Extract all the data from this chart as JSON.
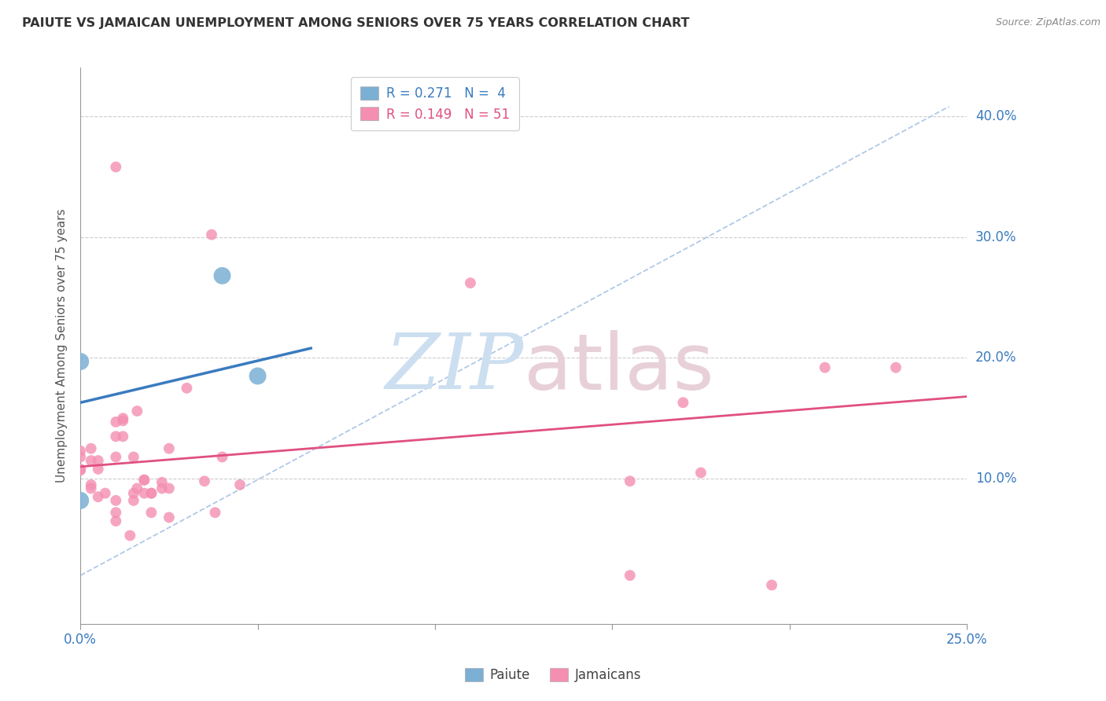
{
  "title": "PAIUTE VS JAMAICAN UNEMPLOYMENT AMONG SENIORS OVER 75 YEARS CORRELATION CHART",
  "source": "Source: ZipAtlas.com",
  "ylabel": "Unemployment Among Seniors over 75 years",
  "xlim": [
    0.0,
    0.25
  ],
  "ylim": [
    -0.02,
    0.44
  ],
  "background_color": "#ffffff",
  "paiute_color": "#7bafd4",
  "jamaican_color": "#f48fb1",
  "paiute_line_color": "#3a7bbf",
  "jamaican_line_color": "#e05080",
  "dashed_line_color": "#b0c8e8",
  "paiute_points": [
    [
      0.0,
      0.082
    ],
    [
      0.0,
      0.197
    ],
    [
      0.04,
      0.268
    ],
    [
      0.05,
      0.185
    ]
  ],
  "jamaican_points": [
    [
      0.0,
      0.123
    ],
    [
      0.0,
      0.118
    ],
    [
      0.0,
      0.107
    ],
    [
      0.0,
      0.108
    ],
    [
      0.003,
      0.115
    ],
    [
      0.003,
      0.095
    ],
    [
      0.003,
      0.092
    ],
    [
      0.003,
      0.125
    ],
    [
      0.005,
      0.108
    ],
    [
      0.005,
      0.115
    ],
    [
      0.005,
      0.085
    ],
    [
      0.007,
      0.088
    ],
    [
      0.01,
      0.082
    ],
    [
      0.01,
      0.072
    ],
    [
      0.01,
      0.065
    ],
    [
      0.01,
      0.135
    ],
    [
      0.01,
      0.147
    ],
    [
      0.01,
      0.118
    ],
    [
      0.01,
      0.358
    ],
    [
      0.012,
      0.15
    ],
    [
      0.012,
      0.135
    ],
    [
      0.012,
      0.148
    ],
    [
      0.014,
      0.053
    ],
    [
      0.015,
      0.082
    ],
    [
      0.015,
      0.088
    ],
    [
      0.015,
      0.118
    ],
    [
      0.016,
      0.092
    ],
    [
      0.016,
      0.156
    ],
    [
      0.018,
      0.088
    ],
    [
      0.018,
      0.099
    ],
    [
      0.018,
      0.099
    ],
    [
      0.02,
      0.088
    ],
    [
      0.02,
      0.072
    ],
    [
      0.02,
      0.088
    ],
    [
      0.023,
      0.097
    ],
    [
      0.023,
      0.092
    ],
    [
      0.025,
      0.068
    ],
    [
      0.025,
      0.092
    ],
    [
      0.025,
      0.125
    ],
    [
      0.03,
      0.175
    ],
    [
      0.035,
      0.098
    ],
    [
      0.037,
      0.302
    ],
    [
      0.038,
      0.072
    ],
    [
      0.04,
      0.118
    ],
    [
      0.045,
      0.095
    ],
    [
      0.11,
      0.262
    ],
    [
      0.155,
      0.098
    ],
    [
      0.17,
      0.163
    ],
    [
      0.175,
      0.105
    ],
    [
      0.21,
      0.192
    ],
    [
      0.23,
      0.192
    ],
    [
      0.155,
      0.02
    ],
    [
      0.195,
      0.012
    ]
  ],
  "paiute_trendline_x": [
    0.0,
    0.065
  ],
  "paiute_trendline_y": [
    0.163,
    0.208
  ],
  "jamaican_trendline_x": [
    0.0,
    0.25
  ],
  "jamaican_trendline_y": [
    0.11,
    0.168
  ],
  "dashed_trendline_x": [
    0.0,
    0.245
  ],
  "dashed_trendline_y": [
    0.02,
    0.408
  ],
  "scatter_size_paiute": 250,
  "scatter_size_jamaican": 100
}
